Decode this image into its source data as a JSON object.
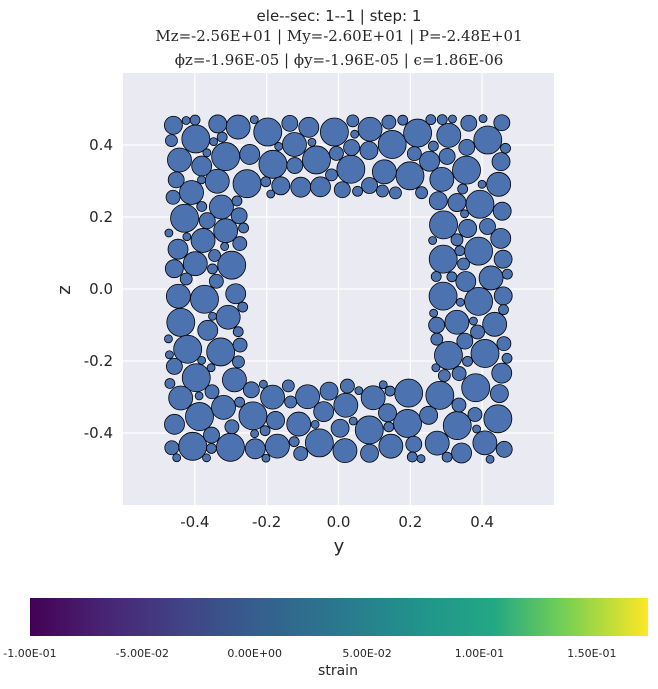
{
  "chart_data": {
    "type": "scatter",
    "title_lines": [
      "ele--sec: 1--1 | step: 1",
      "Mz=-2.56E+01 | My=-2.60E+01 | P=-2.48E+01",
      "ϕz=-1.96E-05 | ϕy=-1.96E-05 | ϵ=1.86E-06"
    ],
    "xlabel": "y",
    "ylabel": "z",
    "xlim": [
      -0.6,
      0.6
    ],
    "ylim": [
      -0.6,
      0.6
    ],
    "xticks": [
      "-0.4",
      "-0.2",
      "0.0",
      "0.2",
      "0.4"
    ],
    "yticks": [
      "0.4",
      "0.2",
      "0.0",
      "-0.2",
      "-0.4"
    ],
    "xtick_values": [
      -0.4,
      -0.2,
      0.0,
      0.2,
      0.4
    ],
    "ytick_values": [
      0.4,
      0.2,
      0.0,
      -0.2,
      -0.4
    ],
    "grid": true,
    "marker_color": "#4c72b0",
    "marker_edge": "#000000",
    "section": {
      "outer_half_width": 0.5,
      "inner_half_width": 0.25,
      "description_values": "square hollow section fibers, all with near-zero strain"
    },
    "colorbar": {
      "label": "strain",
      "range": [
        -0.1,
        0.175
      ],
      "ticks": [
        "-1.00E-01",
        "-5.00E-02",
        "0.00E+00",
        "5.00E-02",
        "1.00E-01",
        "1.50E-01"
      ],
      "tick_values": [
        -0.1,
        -0.05,
        0.0,
        0.05,
        0.1,
        0.15
      ],
      "colormap": "viridis"
    }
  }
}
